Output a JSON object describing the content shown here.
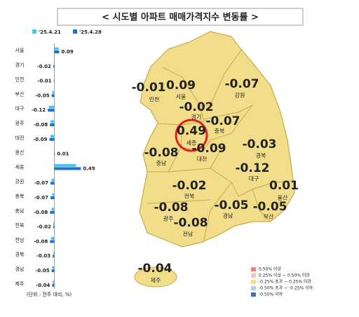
{
  "header": {
    "title": "< 시도별 아파트 매매가격지수 변동률 >"
  },
  "chart_data": {
    "type": "bar",
    "orientation": "horizontal",
    "categories": [
      "서울",
      "경기",
      "인천",
      "부산",
      "대구",
      "광주",
      "대전",
      "울산",
      "세종",
      "강원",
      "충북",
      "충남",
      "전북",
      "전남",
      "경북",
      "경남",
      "제주"
    ],
    "series": [
      {
        "name": "'25.4.21",
        "color": "#4fc3f0",
        "values": [
          0.08,
          -0.01,
          0.0,
          -0.04,
          -0.1,
          -0.07,
          -0.07,
          0.01,
          0.4,
          -0.05,
          -0.04,
          -0.05,
          -0.02,
          -0.06,
          -0.02,
          -0.04,
          -0.03
        ]
      },
      {
        "name": "'25.4.28",
        "color": "#1f6fd1",
        "values": [
          0.09,
          -0.02,
          -0.01,
          -0.05,
          -0.12,
          -0.08,
          -0.09,
          0.01,
          0.49,
          -0.07,
          -0.07,
          -0.08,
          -0.02,
          -0.08,
          -0.03,
          -0.05,
          -0.04
        ]
      }
    ],
    "xlim": [
      -0.2,
      0.55
    ],
    "note": "(단위 : 전주 대비, %)"
  },
  "map": {
    "regions": [
      {
        "name": "인천",
        "value": -0.01
      },
      {
        "name": "서울",
        "value": 0.09
      },
      {
        "name": "경기",
        "value": -0.02
      },
      {
        "name": "강원",
        "value": -0.07
      },
      {
        "name": "충북",
        "value": -0.07
      },
      {
        "name": "세종",
        "value": 0.49
      },
      {
        "name": "충남",
        "value": -0.08
      },
      {
        "name": "대전",
        "value": -0.09
      },
      {
        "name": "경북",
        "value": -0.03
      },
      {
        "name": "대구",
        "value": -0.12
      },
      {
        "name": "전북",
        "value": -0.02
      },
      {
        "name": "울산",
        "value": 0.01
      },
      {
        "name": "광주",
        "value": -0.08
      },
      {
        "name": "경남",
        "value": -0.05
      },
      {
        "name": "부산",
        "value": -0.05
      },
      {
        "name": "전남",
        "value": -0.08
      },
      {
        "name": "제주",
        "value": -0.04
      }
    ],
    "legend": [
      {
        "label": "0.50% 이상",
        "color": "#f07f86"
      },
      {
        "label": "0.25% 이상 ~ 0.50% 미만",
        "color": "#f6c4c6"
      },
      {
        "label": "-0.25% 초과 ~ 0.25% 미만",
        "color": "#f3df8c"
      },
      {
        "label": "-0.50% 초과 ~ -0.25% 이하",
        "color": "#b6cbe6"
      },
      {
        "label": "-0.50% 이하",
        "color": "#3f6fc1"
      }
    ]
  }
}
